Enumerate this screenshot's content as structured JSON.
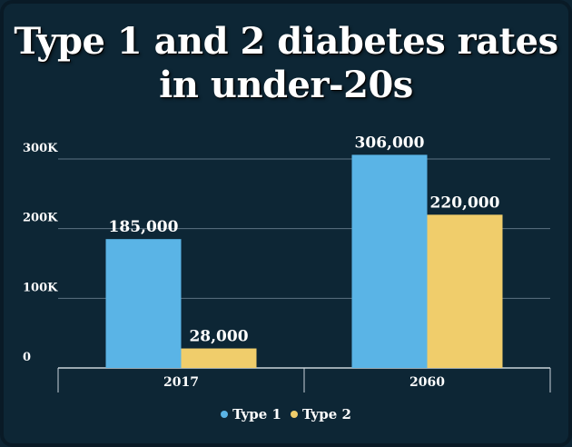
{
  "title": "Type 1 and 2 diabetes rates in under-20s",
  "chart_data": {
    "type": "bar",
    "title": "Type 1 and 2 diabetes rates in under-20s",
    "categories": [
      "2017",
      "2060"
    ],
    "series": [
      {
        "name": "Type 1",
        "color": "#5ab4e6",
        "values": [
          185000,
          306000
        ],
        "labels": [
          "185,000",
          "306,000"
        ]
      },
      {
        "name": "Type 2",
        "color": "#f0cd6b",
        "values": [
          28000,
          220000
        ],
        "labels": [
          "28,000",
          "220,000"
        ]
      }
    ],
    "yticks": [
      0,
      100000,
      200000,
      300000
    ],
    "ytick_labels": [
      "0",
      "100K",
      "200K",
      "300K"
    ],
    "ylim": [
      0,
      310000
    ],
    "xlabel": "",
    "ylabel": "",
    "grid": true,
    "legend_position": "bottom-center"
  }
}
